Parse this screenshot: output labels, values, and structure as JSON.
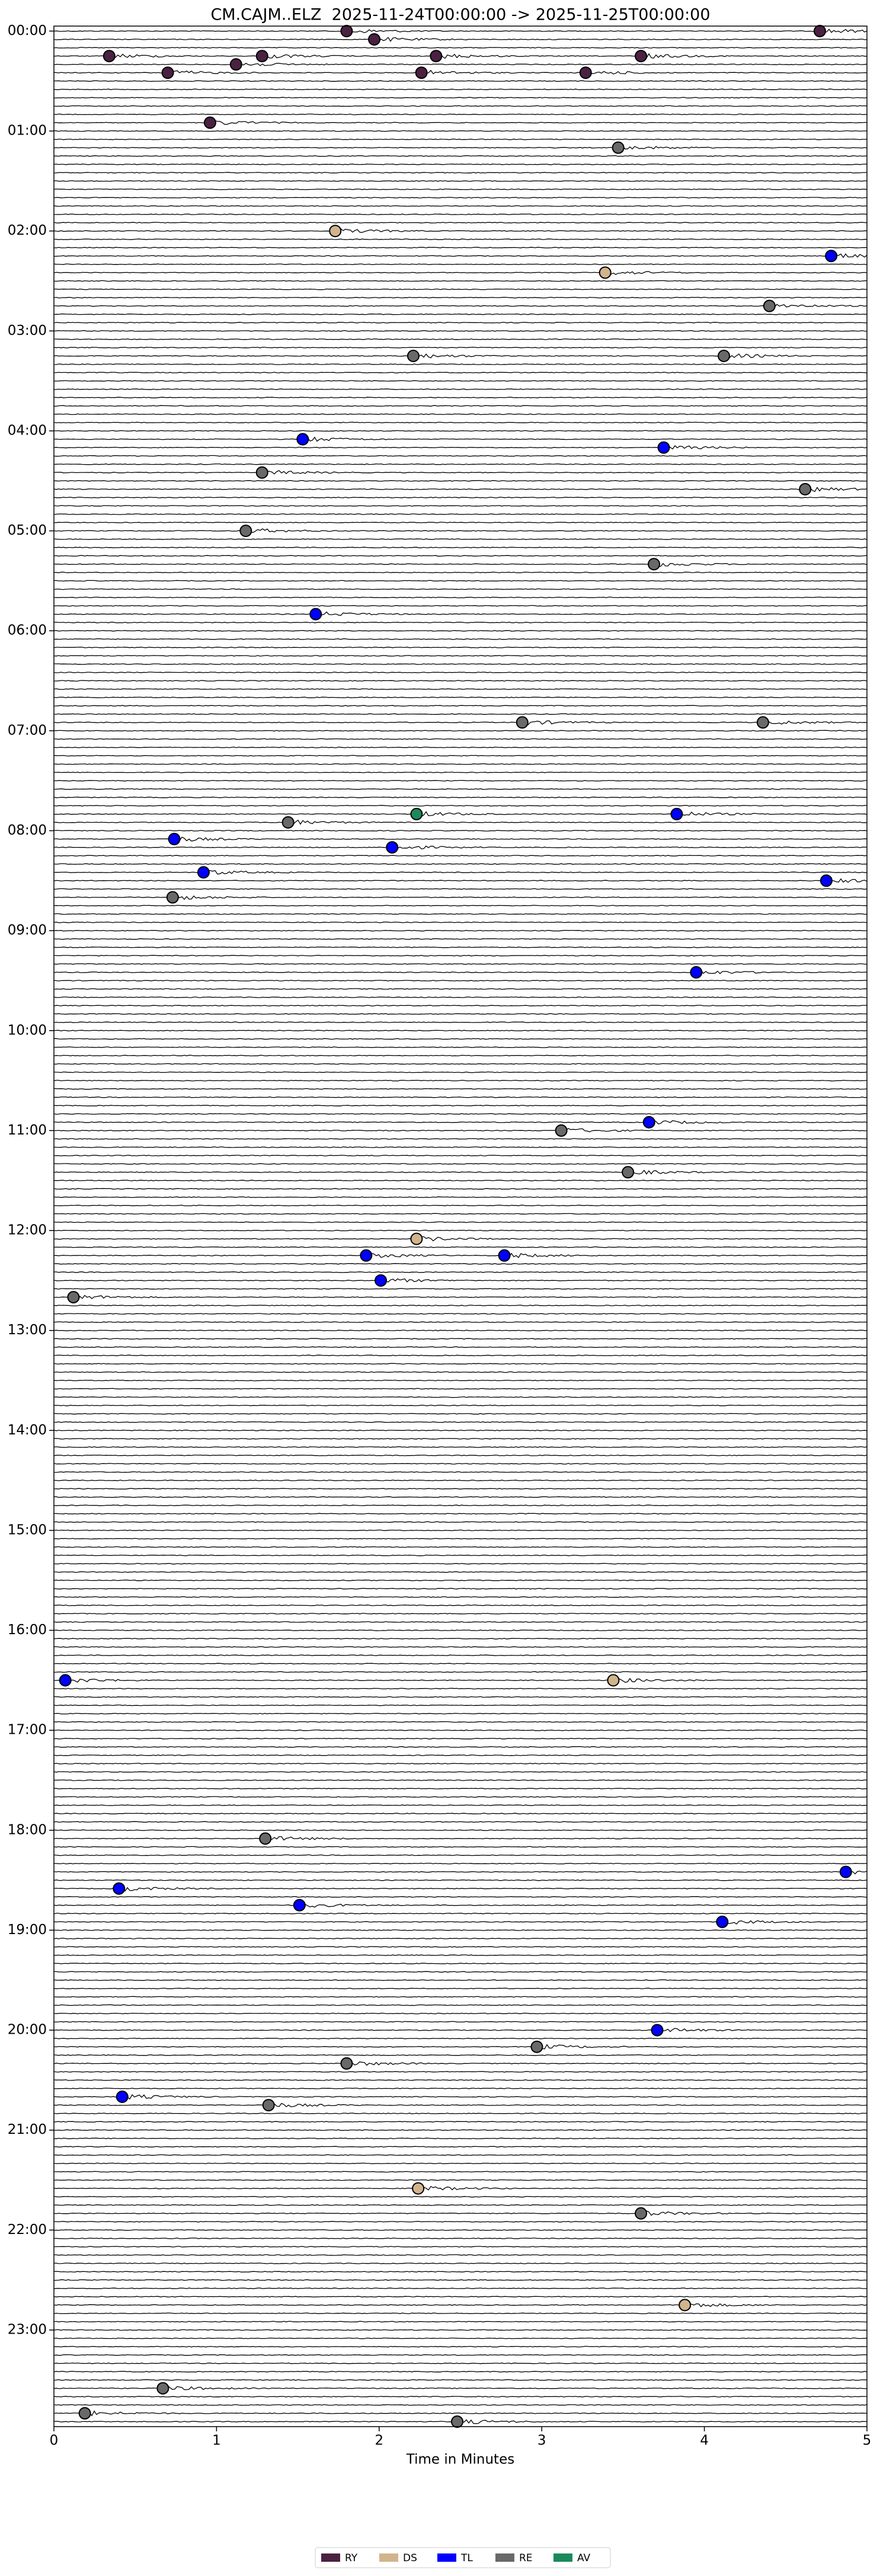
{
  "chart_data": {
    "type": "helicorder",
    "title": "CM.CAJM..ELZ  2025-11-24T00:00:00 -> 2025-11-25T00:00:00",
    "x_label": "Time in Minutes",
    "xlim": [
      0,
      5
    ],
    "xticks": [
      0,
      1,
      2,
      3,
      4,
      5
    ],
    "ylim": [
      -3,
      1438
    ],
    "yticks": [
      {
        "value": 0,
        "label": "00:00"
      },
      {
        "value": 60,
        "label": "01:00"
      },
      {
        "value": 120,
        "label": "02:00"
      },
      {
        "value": 180,
        "label": "03:00"
      },
      {
        "value": 240,
        "label": "04:00"
      },
      {
        "value": 300,
        "label": "05:00"
      },
      {
        "value": 360,
        "label": "06:00"
      },
      {
        "value": 420,
        "label": "07:00"
      },
      {
        "value": 480,
        "label": "08:00"
      },
      {
        "value": 540,
        "label": "09:00"
      },
      {
        "value": 600,
        "label": "10:00"
      },
      {
        "value": 660,
        "label": "11:00"
      },
      {
        "value": 720,
        "label": "12:00"
      },
      {
        "value": 780,
        "label": "13:00"
      },
      {
        "value": 840,
        "label": "14:00"
      },
      {
        "value": 900,
        "label": "15:00"
      },
      {
        "value": 960,
        "label": "16:00"
      },
      {
        "value": 1020,
        "label": "17:00"
      },
      {
        "value": 1080,
        "label": "18:00"
      },
      {
        "value": 1140,
        "label": "19:00"
      },
      {
        "value": 1200,
        "label": "20:00"
      },
      {
        "value": 1260,
        "label": "21:00"
      },
      {
        "value": 1320,
        "label": "22:00"
      },
      {
        "value": 1380,
        "label": "23:00"
      }
    ],
    "row_minutes": 5,
    "series": [
      {
        "name": "RY",
        "color": "#4b2142",
        "x": [
          1.8,
          1.97,
          1.28,
          2.35,
          4.71,
          3.61,
          0.34,
          1.12,
          0.7,
          2.26,
          3.27,
          0.96
        ],
        "values": [
          0,
          5,
          15,
          15,
          0,
          15,
          15,
          20,
          25,
          25,
          25,
          55
        ]
      },
      {
        "name": "DS",
        "color": "#d2b48c",
        "x": [
          1.73,
          3.39,
          2.23,
          3.44,
          2.24,
          3.88
        ],
        "values": [
          120,
          145,
          725,
          990,
          1295,
          1365
        ]
      },
      {
        "name": "TL",
        "color": "#0000ff",
        "x": [
          4.78,
          1.53,
          3.75,
          1.61,
          3.83,
          0.74,
          2.08,
          0.92,
          4.75,
          3.95,
          3.66,
          1.92,
          2.77,
          2.01,
          0.07,
          4.87,
          0.4,
          1.51,
          4.11,
          3.71,
          0.42
        ],
        "values": [
          135,
          245,
          250,
          350,
          470,
          485,
          490,
          505,
          510,
          565,
          655,
          735,
          735,
          750,
          990,
          1105,
          1115,
          1125,
          1135,
          1200,
          1240
        ]
      },
      {
        "name": "RE",
        "color": "#696969",
        "x": [
          3.47,
          4.4,
          2.21,
          4.12,
          1.28,
          4.62,
          1.18,
          3.69,
          2.88,
          4.36,
          1.44,
          0.73,
          3.12,
          3.53,
          0.12,
          1.3,
          2.97,
          1.8,
          1.32,
          3.61,
          0.67,
          0.19,
          2.48
        ],
        "values": [
          70,
          165,
          195,
          195,
          265,
          275,
          300,
          320,
          415,
          415,
          475,
          520,
          660,
          685,
          760,
          1085,
          1210,
          1220,
          1245,
          1310,
          1415,
          1430,
          1435
        ]
      },
      {
        "name": "AV",
        "color": "#1b8a5a",
        "x": [
          2.23
        ],
        "values": [
          470
        ]
      }
    ]
  }
}
